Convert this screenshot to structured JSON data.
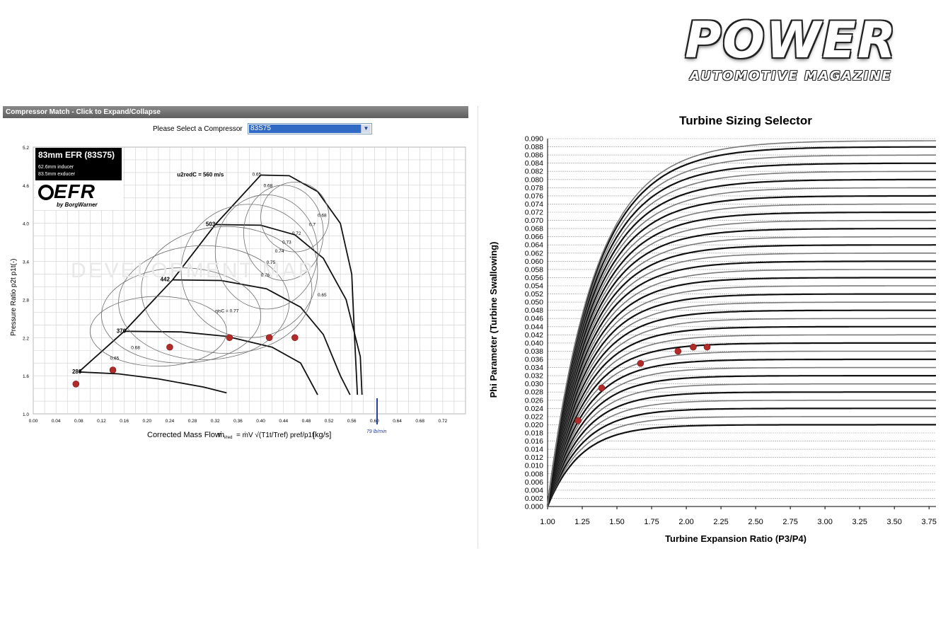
{
  "logo": {
    "main": "POWER",
    "sub": "AUTOMOTIVE MAGAZINE"
  },
  "compressor_panel": {
    "header": "Compressor Match - Click to Expand/Collapse",
    "select_label": "Please Select a Compressor",
    "select_value": "83S75",
    "efr_box": {
      "title": "83mm EFR  (83S75)",
      "line1": "62.6mm inducer",
      "line2": "83.5mm exducer",
      "logo": "EFR",
      "logo_sub": "by BorgWarner"
    },
    "watermark": "DEVELOPMENT MAP",
    "annotation_flow": "79 lb/min"
  },
  "colors": {
    "point": "#b22b2b",
    "curve_dark": "#111111",
    "curve_light": "#7a7a7a",
    "grid": "#cfcfcf"
  },
  "chart_data": [
    {
      "type": "scatter",
      "title": "",
      "xlabel": "Corrected Mass Flow",
      "xlabel_formula": "ṁ",
      "xlabel_formula_sub": "Vred",
      "xlabel_formula_rest": "= ṁV √(T1t/Tref) pref/p1t",
      "xlabel_unit": "[kg/s]",
      "ylabel": "Pressure Ratio  p2t p1t(-)",
      "xlim": [
        0.0,
        0.76
      ],
      "ylim": [
        1.0,
        5.2
      ],
      "x_ticks": [
        "0.00",
        "0.04",
        "0.08",
        "0.12",
        "0.16",
        "0.20",
        "0.24",
        "0.28",
        "0.32",
        "0.36",
        "0.40",
        "0.44",
        "0.48",
        "0.52",
        "0.56",
        "0.60",
        "0.64",
        "0.68",
        "0.72"
      ],
      "y_ticks": [
        "1.0",
        "1.6",
        "2.2",
        "2.8",
        "3.4",
        "4.0",
        "4.6",
        "5.2"
      ],
      "grid": true,
      "series": [
        {
          "values": [
            [
              0.075,
              1.47
            ],
            [
              0.14,
              1.69
            ],
            [
              0.24,
              2.05
            ],
            [
              0.345,
              2.2
            ],
            [
              0.415,
              2.2
            ],
            [
              0.46,
              2.2
            ]
          ]
        }
      ],
      "speed_labels": [
        {
          "text": "280",
          "x": 0.09,
          "y": 1.66
        },
        {
          "text": "370",
          "x": 0.168,
          "y": 2.3
        },
        {
          "text": "442",
          "x": 0.245,
          "y": 3.11
        },
        {
          "text": "503",
          "x": 0.325,
          "y": 3.98
        },
        {
          "text": "u2redC = 560 m/s",
          "x": 0.34,
          "y": 4.76
        }
      ],
      "efficiency_labels": [
        {
          "text": "0.65",
          "x": 0.135,
          "y": 1.85
        },
        {
          "text": "0.68",
          "x": 0.172,
          "y": 2.02
        },
        {
          "text": "0.65",
          "x": 0.385,
          "y": 4.75
        },
        {
          "text": "0.68",
          "x": 0.405,
          "y": 4.57
        },
        {
          "text": "0.68",
          "x": 0.5,
          "y": 4.1
        },
        {
          "text": "0.7",
          "x": 0.485,
          "y": 3.96
        },
        {
          "text": "0.72",
          "x": 0.455,
          "y": 3.82
        },
        {
          "text": "0.73",
          "x": 0.438,
          "y": 3.68
        },
        {
          "text": "0.74",
          "x": 0.425,
          "y": 3.54
        },
        {
          "text": "0.75",
          "x": 0.41,
          "y": 3.36
        },
        {
          "text": "0.76",
          "x": 0.4,
          "y": 3.16
        },
        {
          "text": "0.65",
          "x": 0.5,
          "y": 2.85
        },
        {
          "text": "ηisC = 0.77",
          "x": 0.32,
          "y": 2.6
        }
      ]
    },
    {
      "type": "line",
      "title": "Turbine Sizing Selector",
      "xlabel": "Turbine Expansion Ratio (P3/P4)",
      "ylabel": "Phi Parameter (Turbine Swallowing)",
      "xlim": [
        1.0,
        3.8
      ],
      "ylim": [
        0.0,
        0.09
      ],
      "x_ticks": [
        "1.00",
        "1.25",
        "1.50",
        "1.75",
        "2.00",
        "2.25",
        "2.50",
        "2.75",
        "3.00",
        "3.25",
        "3.50",
        "3.75"
      ],
      "y_ticks": [
        "0.000",
        "0.002",
        "0.004",
        "0.006",
        "0.008",
        "0.010",
        "0.012",
        "0.014",
        "0.016",
        "0.018",
        "0.020",
        "0.022",
        "0.024",
        "0.026",
        "0.028",
        "0.030",
        "0.032",
        "0.034",
        "0.036",
        "0.038",
        "0.040",
        "0.042",
        "0.044",
        "0.046",
        "0.048",
        "0.050",
        "0.052",
        "0.054",
        "0.056",
        "0.058",
        "0.060",
        "0.062",
        "0.064",
        "0.066",
        "0.068",
        "0.070",
        "0.072",
        "0.074",
        "0.076",
        "0.078",
        "0.080",
        "0.082",
        "0.084",
        "0.086",
        "0.088",
        "0.090"
      ],
      "grid": true,
      "curve_asymptotes": [
        0.02,
        0.022,
        0.024,
        0.026,
        0.028,
        0.03,
        0.032,
        0.034,
        0.036,
        0.038,
        0.04,
        0.042,
        0.044,
        0.046,
        0.048,
        0.05,
        0.052,
        0.054,
        0.056,
        0.058,
        0.06,
        0.062,
        0.064,
        0.066,
        0.068,
        0.07,
        0.072,
        0.074,
        0.076,
        0.078,
        0.08,
        0.082,
        0.084,
        0.086,
        0.088,
        0.0895
      ],
      "series": [
        {
          "values": [
            [
              1.22,
              0.021
            ],
            [
              1.39,
              0.029
            ],
            [
              1.67,
              0.035
            ],
            [
              1.94,
              0.038
            ],
            [
              2.05,
              0.039
            ],
            [
              2.15,
              0.039
            ]
          ]
        }
      ]
    }
  ]
}
